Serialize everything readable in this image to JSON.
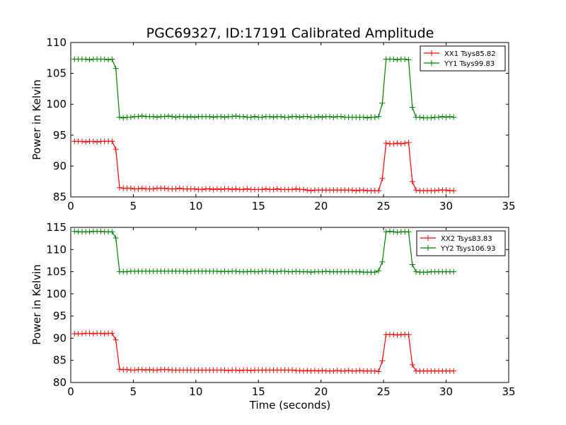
{
  "figure": {
    "title": "PGC69327, ID:17191 Calibrated Amplitude"
  },
  "colors": {
    "xx": "#ff0000",
    "yy": "#008000",
    "axes": "#000000",
    "background": "#ffffff"
  },
  "chart_data": [
    {
      "type": "line",
      "marker": "plus",
      "title": "PGC69327, ID:17191 Calibrated Amplitude",
      "xlabel": "",
      "ylabel": "Power in Kelvin",
      "xlim": [
        0,
        35
      ],
      "ylim": [
        85,
        110
      ],
      "xticks": [
        0,
        5,
        10,
        15,
        20,
        25,
        30,
        35
      ],
      "yticks": [
        85,
        90,
        95,
        100,
        105,
        110
      ],
      "grid": false,
      "legend_position": "top-right",
      "series": [
        {
          "name": "XX1 Tsys85.82",
          "color": "#ff0000",
          "x": [
            0.3,
            0.6,
            0.9,
            1.2,
            1.5,
            1.8,
            2.1,
            2.4,
            2.7,
            3.0,
            3.3,
            3.6,
            3.9,
            4.2,
            4.5,
            4.8,
            5.1,
            5.4,
            5.7,
            6.0,
            6.3,
            6.6,
            6.9,
            7.2,
            7.5,
            7.8,
            8.1,
            8.4,
            8.7,
            9.0,
            9.3,
            9.6,
            9.9,
            10.2,
            10.5,
            10.8,
            11.1,
            11.4,
            11.7,
            12.0,
            12.3,
            12.6,
            12.9,
            13.2,
            13.5,
            13.8,
            14.1,
            14.4,
            14.7,
            15.0,
            15.3,
            15.6,
            15.9,
            16.2,
            16.5,
            16.8,
            17.1,
            17.4,
            17.7,
            18.0,
            18.3,
            18.6,
            18.9,
            19.2,
            19.5,
            19.8,
            20.1,
            20.4,
            20.7,
            21.0,
            21.3,
            21.6,
            21.9,
            22.2,
            22.5,
            22.8,
            23.1,
            23.4,
            23.7,
            24.0,
            24.3,
            24.6,
            24.9,
            25.2,
            25.5,
            25.8,
            26.1,
            26.4,
            26.7,
            27.0,
            27.3,
            27.6,
            27.9,
            28.2,
            28.5,
            28.8,
            29.1,
            29.4,
            29.7,
            30.0,
            30.3,
            30.6
          ],
          "y": [
            94.0,
            94.0,
            94.0,
            93.9,
            94.0,
            94.0,
            93.9,
            94.0,
            94.0,
            94.0,
            94.0,
            92.7,
            86.5,
            86.4,
            86.4,
            86.4,
            86.3,
            86.3,
            86.4,
            86.3,
            86.3,
            86.3,
            86.4,
            86.4,
            86.4,
            86.3,
            86.3,
            86.3,
            86.4,
            86.3,
            86.3,
            86.3,
            86.3,
            86.2,
            86.2,
            86.3,
            86.3,
            86.2,
            86.3,
            86.2,
            86.3,
            86.3,
            86.2,
            86.3,
            86.2,
            86.2,
            86.3,
            86.2,
            86.2,
            86.2,
            86.2,
            86.3,
            86.2,
            86.2,
            86.3,
            86.2,
            86.2,
            86.2,
            86.2,
            86.3,
            86.2,
            86.2,
            86.1,
            86.0,
            86.1,
            86.1,
            86.1,
            86.1,
            86.1,
            86.1,
            86.1,
            86.1,
            86.1,
            86.1,
            86.1,
            86.0,
            86.1,
            86.1,
            86.0,
            86.0,
            86.0,
            86.0,
            88.0,
            93.7,
            93.6,
            93.6,
            93.7,
            93.6,
            93.7,
            93.8,
            87.5,
            86.1,
            86.0,
            86.0,
            86.0,
            86.0,
            86.0,
            86.1,
            86.1,
            86.1,
            86.0,
            86.0
          ]
        },
        {
          "name": "YY1 Tsys99.83",
          "color": "#008000",
          "x": [
            0.3,
            0.6,
            0.9,
            1.2,
            1.5,
            1.8,
            2.1,
            2.4,
            2.7,
            3.0,
            3.3,
            3.6,
            3.9,
            4.2,
            4.5,
            4.8,
            5.1,
            5.4,
            5.7,
            6.0,
            6.3,
            6.6,
            6.9,
            7.2,
            7.5,
            7.8,
            8.1,
            8.4,
            8.7,
            9.0,
            9.3,
            9.6,
            9.9,
            10.2,
            10.5,
            10.8,
            11.1,
            11.4,
            11.7,
            12.0,
            12.3,
            12.6,
            12.9,
            13.2,
            13.5,
            13.8,
            14.1,
            14.4,
            14.7,
            15.0,
            15.3,
            15.6,
            15.9,
            16.2,
            16.5,
            16.8,
            17.1,
            17.4,
            17.7,
            18.0,
            18.3,
            18.6,
            18.9,
            19.2,
            19.5,
            19.8,
            20.1,
            20.4,
            20.7,
            21.0,
            21.3,
            21.6,
            21.9,
            22.2,
            22.5,
            22.8,
            23.1,
            23.4,
            23.7,
            24.0,
            24.3,
            24.6,
            24.9,
            25.2,
            25.5,
            25.8,
            26.1,
            26.4,
            26.7,
            27.0,
            27.3,
            27.6,
            27.9,
            28.2,
            28.5,
            28.8,
            29.1,
            29.4,
            29.7,
            30.0,
            30.3,
            30.6
          ],
          "y": [
            107.3,
            107.3,
            107.3,
            107.3,
            107.2,
            107.3,
            107.3,
            107.3,
            107.3,
            107.2,
            107.3,
            105.8,
            97.9,
            97.8,
            97.9,
            97.9,
            98.0,
            98.0,
            98.1,
            98.0,
            98.0,
            98.0,
            97.9,
            98.0,
            98.0,
            98.1,
            98.0,
            97.9,
            98.0,
            98.0,
            97.9,
            98.0,
            97.9,
            98.0,
            98.0,
            98.0,
            98.0,
            97.9,
            98.0,
            98.0,
            97.9,
            98.0,
            98.0,
            98.1,
            98.0,
            98.0,
            97.9,
            97.9,
            98.0,
            97.9,
            97.9,
            98.0,
            98.0,
            97.9,
            98.0,
            98.0,
            97.9,
            97.9,
            98.0,
            98.0,
            97.9,
            98.0,
            98.0,
            97.9,
            97.9,
            98.0,
            97.9,
            98.0,
            98.0,
            97.9,
            98.0,
            98.0,
            97.9,
            97.9,
            97.9,
            97.9,
            97.9,
            97.9,
            97.8,
            97.9,
            97.9,
            98.0,
            100.2,
            107.3,
            107.3,
            107.3,
            107.2,
            107.3,
            107.3,
            107.2,
            99.5,
            97.9,
            97.9,
            97.8,
            97.8,
            97.8,
            97.9,
            97.9,
            98.0,
            97.9,
            98.0,
            97.9
          ]
        }
      ]
    },
    {
      "type": "line",
      "marker": "plus",
      "title": "",
      "xlabel": "Time (seconds)",
      "ylabel": "Power in Kelvin",
      "xlim": [
        0,
        35
      ],
      "ylim": [
        80,
        115
      ],
      "xticks": [
        0,
        5,
        10,
        15,
        20,
        25,
        30,
        35
      ],
      "yticks": [
        80,
        85,
        90,
        95,
        100,
        105,
        110,
        115
      ],
      "grid": false,
      "legend_position": "top-right",
      "series": [
        {
          "name": "XX2 Tsys83.83",
          "color": "#ff0000",
          "x": [
            0.3,
            0.6,
            0.9,
            1.2,
            1.5,
            1.8,
            2.1,
            2.4,
            2.7,
            3.0,
            3.3,
            3.6,
            3.9,
            4.2,
            4.5,
            4.8,
            5.1,
            5.4,
            5.7,
            6.0,
            6.3,
            6.6,
            6.9,
            7.2,
            7.5,
            7.8,
            8.1,
            8.4,
            8.7,
            9.0,
            9.3,
            9.6,
            9.9,
            10.2,
            10.5,
            10.8,
            11.1,
            11.4,
            11.7,
            12.0,
            12.3,
            12.6,
            12.9,
            13.2,
            13.5,
            13.8,
            14.1,
            14.4,
            14.7,
            15.0,
            15.3,
            15.6,
            15.9,
            16.2,
            16.5,
            16.8,
            17.1,
            17.4,
            17.7,
            18.0,
            18.3,
            18.6,
            18.9,
            19.2,
            19.5,
            19.8,
            20.1,
            20.4,
            20.7,
            21.0,
            21.3,
            21.6,
            21.9,
            22.2,
            22.5,
            22.8,
            23.1,
            23.4,
            23.7,
            24.0,
            24.3,
            24.6,
            24.9,
            25.2,
            25.5,
            25.8,
            26.1,
            26.4,
            26.7,
            27.0,
            27.3,
            27.6,
            27.9,
            28.2,
            28.5,
            28.8,
            29.1,
            29.4,
            29.7,
            30.0,
            30.3,
            30.6
          ],
          "y": [
            91.0,
            91.0,
            91.0,
            91.1,
            91.1,
            91.0,
            91.1,
            91.1,
            91.0,
            91.1,
            91.1,
            89.6,
            83.0,
            82.9,
            82.9,
            82.8,
            82.8,
            82.9,
            82.9,
            82.8,
            82.9,
            82.8,
            82.8,
            82.9,
            82.9,
            82.9,
            82.8,
            82.8,
            82.8,
            82.8,
            82.8,
            82.8,
            82.8,
            82.8,
            82.8,
            82.8,
            82.8,
            82.8,
            82.8,
            82.8,
            82.8,
            82.7,
            82.8,
            82.8,
            82.7,
            82.8,
            82.8,
            82.7,
            82.8,
            82.8,
            82.8,
            82.8,
            82.8,
            82.8,
            82.8,
            82.8,
            82.8,
            82.8,
            82.8,
            82.7,
            82.7,
            82.6,
            82.7,
            82.6,
            82.7,
            82.6,
            82.7,
            82.6,
            82.6,
            82.6,
            82.7,
            82.6,
            82.6,
            82.7,
            82.6,
            82.6,
            82.7,
            82.6,
            82.6,
            82.6,
            82.6,
            82.5,
            84.9,
            90.8,
            90.8,
            90.8,
            90.7,
            90.8,
            90.8,
            90.8,
            84.0,
            82.6,
            82.6,
            82.6,
            82.6,
            82.6,
            82.6,
            82.6,
            82.6,
            82.6,
            82.6,
            82.6
          ]
        },
        {
          "name": "YY2 Tsys106.93",
          "color": "#008000",
          "x": [
            0.3,
            0.6,
            0.9,
            1.2,
            1.5,
            1.8,
            2.1,
            2.4,
            2.7,
            3.0,
            3.3,
            3.6,
            3.9,
            4.2,
            4.5,
            4.8,
            5.1,
            5.4,
            5.7,
            6.0,
            6.3,
            6.6,
            6.9,
            7.2,
            7.5,
            7.8,
            8.1,
            8.4,
            8.7,
            9.0,
            9.3,
            9.6,
            9.9,
            10.2,
            10.5,
            10.8,
            11.1,
            11.4,
            11.7,
            12.0,
            12.3,
            12.6,
            12.9,
            13.2,
            13.5,
            13.8,
            14.1,
            14.4,
            14.7,
            15.0,
            15.3,
            15.6,
            15.9,
            16.2,
            16.5,
            16.8,
            17.1,
            17.4,
            17.7,
            18.0,
            18.3,
            18.6,
            18.9,
            19.2,
            19.5,
            19.8,
            20.1,
            20.4,
            20.7,
            21.0,
            21.3,
            21.6,
            21.9,
            22.2,
            22.5,
            22.8,
            23.1,
            23.4,
            23.7,
            24.0,
            24.3,
            24.6,
            24.9,
            25.2,
            25.5,
            25.8,
            26.1,
            26.4,
            26.7,
            27.0,
            27.3,
            27.6,
            27.9,
            28.2,
            28.5,
            28.8,
            29.1,
            29.4,
            29.7,
            30.0,
            30.3,
            30.6
          ],
          "y": [
            114.1,
            114.0,
            114.0,
            114.0,
            114.0,
            114.1,
            114.1,
            114.1,
            114.0,
            114.0,
            114.0,
            112.6,
            105.0,
            105.0,
            105.0,
            105.1,
            105.1,
            105.1,
            105.1,
            105.1,
            105.1,
            105.1,
            105.1,
            105.1,
            105.1,
            105.1,
            105.1,
            105.1,
            105.1,
            105.1,
            105.0,
            105.1,
            105.1,
            105.1,
            105.1,
            105.1,
            105.1,
            105.1,
            105.1,
            105.0,
            105.1,
            105.0,
            105.1,
            105.1,
            105.0,
            105.0,
            105.0,
            105.1,
            105.0,
            105.0,
            105.1,
            105.1,
            105.1,
            105.0,
            105.0,
            105.1,
            105.1,
            105.0,
            105.0,
            105.1,
            105.0,
            105.0,
            105.0,
            104.9,
            105.0,
            105.0,
            105.0,
            105.1,
            105.0,
            105.0,
            105.0,
            105.0,
            105.0,
            105.0,
            105.0,
            105.0,
            105.0,
            104.9,
            104.9,
            104.9,
            104.9,
            105.2,
            107.2,
            114.0,
            114.1,
            114.0,
            113.9,
            114.0,
            114.0,
            114.0,
            106.6,
            105.0,
            104.9,
            104.9,
            104.9,
            105.0,
            105.0,
            105.0,
            105.0,
            105.0,
            105.0,
            105.0
          ]
        }
      ]
    }
  ]
}
